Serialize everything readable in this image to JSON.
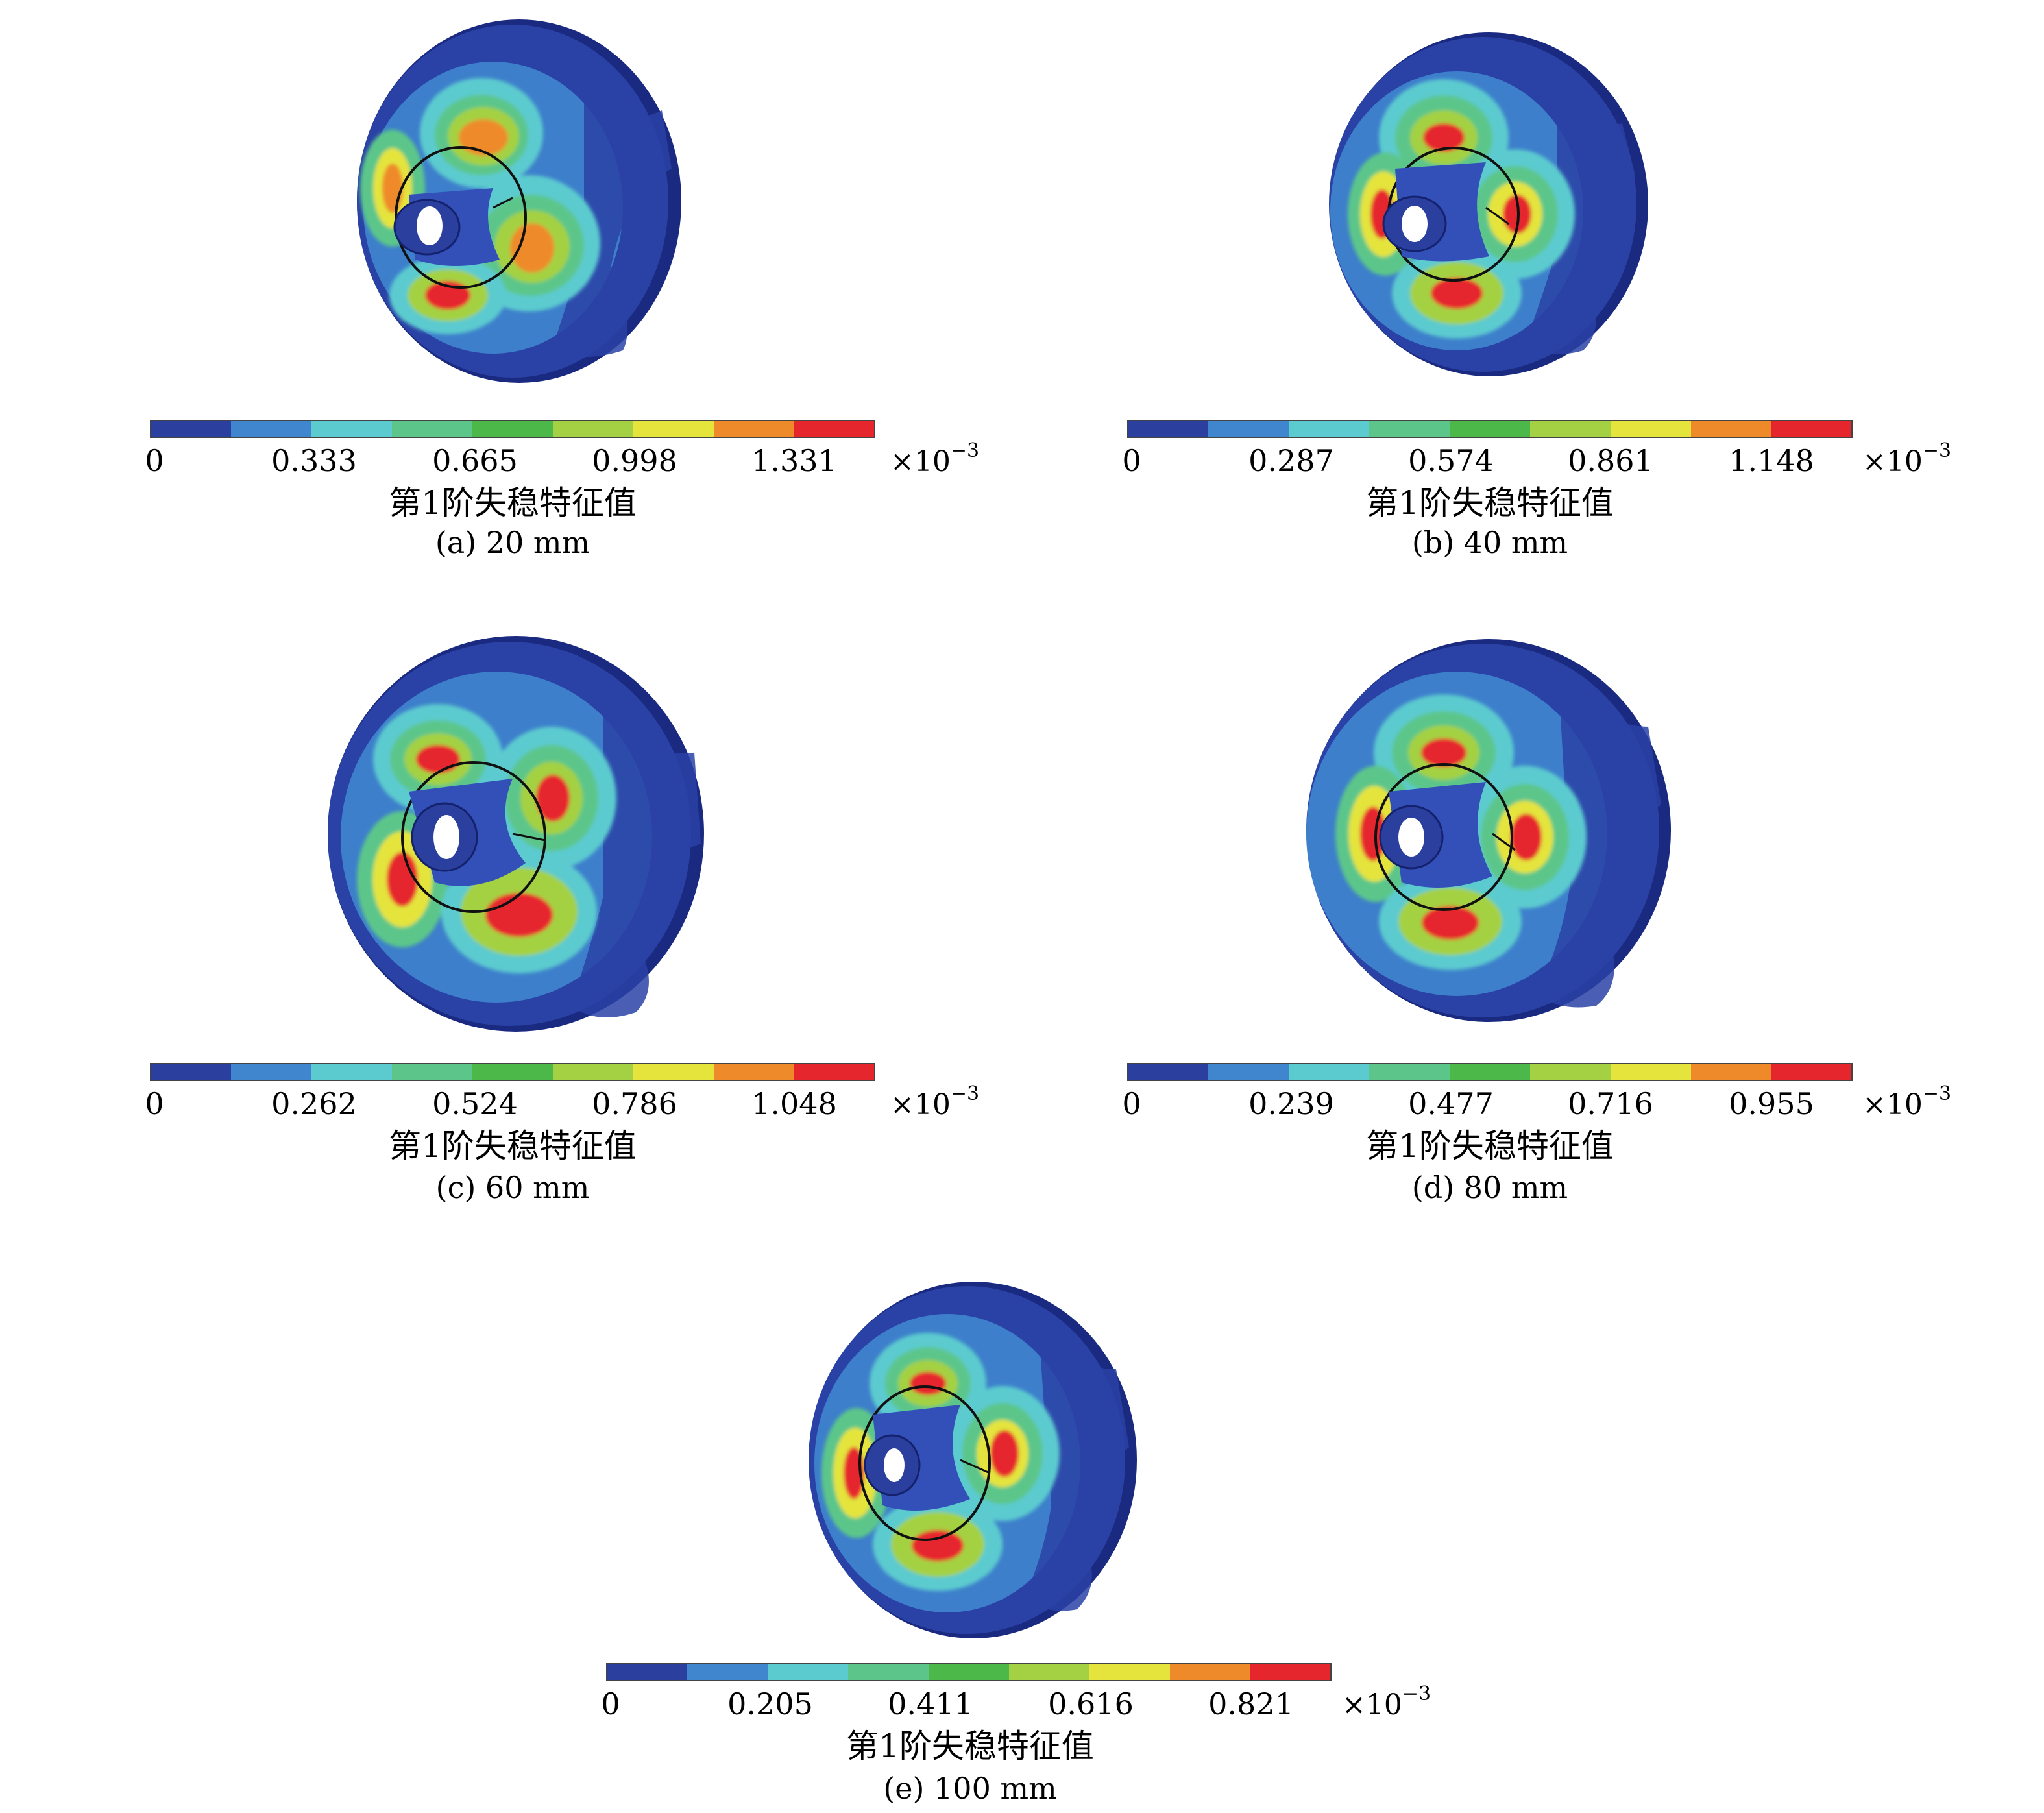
{
  "panels": [
    {
      "id": "a",
      "caption": "(a) 20 mm",
      "colorbar_label": "第1阶失稳特征值",
      "scale_multiplier": "×10",
      "scale_exponent": "−3",
      "ticks": [
        "0",
        "0.333",
        "0.665",
        "0.998",
        "1.331"
      ]
    },
    {
      "id": "b",
      "caption": "(b) 40 mm",
      "colorbar_label": "第1阶失稳特征值",
      "scale_multiplier": "×10",
      "scale_exponent": "−3",
      "ticks": [
        "0",
        "0.287",
        "0.574",
        "0.861",
        "1.148"
      ]
    },
    {
      "id": "c",
      "caption": "(c) 60 mm",
      "colorbar_label": "第1阶失稳特征值",
      "scale_multiplier": "×10",
      "scale_exponent": "−3",
      "ticks": [
        "0",
        "0.262",
        "0.524",
        "0.786",
        "1.048"
      ]
    },
    {
      "id": "d",
      "caption": "(d) 80 mm",
      "colorbar_label": "第1阶失稳特征值",
      "scale_multiplier": "×10",
      "scale_exponent": "−3",
      "ticks": [
        "0",
        "0.239",
        "0.477",
        "0.716",
        "0.955"
      ]
    },
    {
      "id": "e",
      "caption": "(e) 100 mm",
      "colorbar_label": "第1阶失稳特征值",
      "scale_multiplier": "×10",
      "scale_exponent": "−3",
      "ticks": [
        "0",
        "0.205",
        "0.411",
        "0.616",
        "0.821"
      ]
    }
  ],
  "colors": {
    "colormap": [
      "#2b3f9e",
      "#3f86cf",
      "#5ccbcf",
      "#5cc68a",
      "#4db84a",
      "#a4d143",
      "#e4e43c",
      "#ee8a2a",
      "#e6262d"
    ],
    "shell_edge": "#14226e",
    "shell_base": "#2a42a6"
  }
}
